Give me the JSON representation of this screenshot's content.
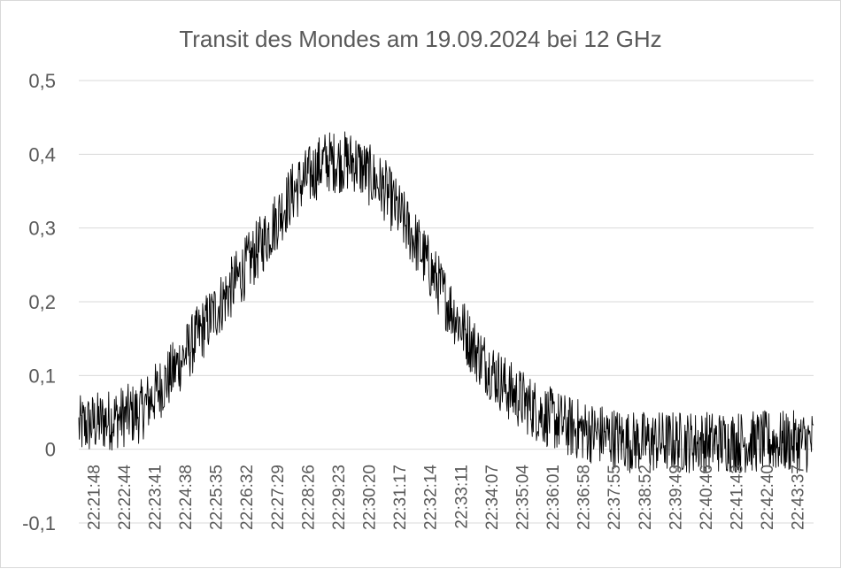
{
  "chart_data": {
    "type": "line",
    "title": "Transit des Mondes am 19.09.2024 bei 12 GHz",
    "xlabel": "",
    "ylabel": "",
    "ylim": [
      -0.1,
      0.5
    ],
    "yticks": [
      "-0,1",
      "0",
      "0,1",
      "0,2",
      "0,3",
      "0,4",
      "0,5"
    ],
    "grid": true,
    "legend": "none",
    "line_color": "#000000",
    "x_range": [
      "22:21:48",
      "22:44:30"
    ],
    "x_tick_labels": [
      "22:21:48",
      "22:22:44",
      "22:23:41",
      "22:24:38",
      "22:25:35",
      "22:26:32",
      "22:27:29",
      "22:28:26",
      "22:29:23",
      "22:30:20",
      "22:31:17",
      "22:32:14",
      "22:33:11",
      "22:34:07",
      "22:35:04",
      "22:36:01",
      "22:36:58",
      "22:37:55",
      "22:38:52",
      "22:39:49",
      "22:40:46",
      "22:41:43",
      "22:42:40",
      "22:43:37"
    ],
    "series": [
      {
        "x": [
          "22:21:48",
          "22:22:44",
          "22:23:41",
          "22:24:38",
          "22:25:35",
          "22:26:32",
          "22:27:29",
          "22:28:26",
          "22:29:23",
          "22:30:20",
          "22:31:17",
          "22:32:14",
          "22:33:11",
          "22:34:07",
          "22:35:04",
          "22:36:01",
          "22:36:58",
          "22:37:55",
          "22:38:52",
          "22:39:49",
          "22:40:46",
          "22:41:43",
          "22:42:40",
          "22:43:37",
          "22:44:30"
        ],
        "values": [
          0.03,
          0.04,
          0.05,
          0.1,
          0.16,
          0.22,
          0.28,
          0.35,
          0.39,
          0.39,
          0.35,
          0.28,
          0.2,
          0.13,
          0.08,
          0.05,
          0.03,
          0.02,
          0.01,
          0.01,
          0.01,
          0.01,
          0.01,
          0.01,
          0.01
        ]
      }
    ]
  }
}
